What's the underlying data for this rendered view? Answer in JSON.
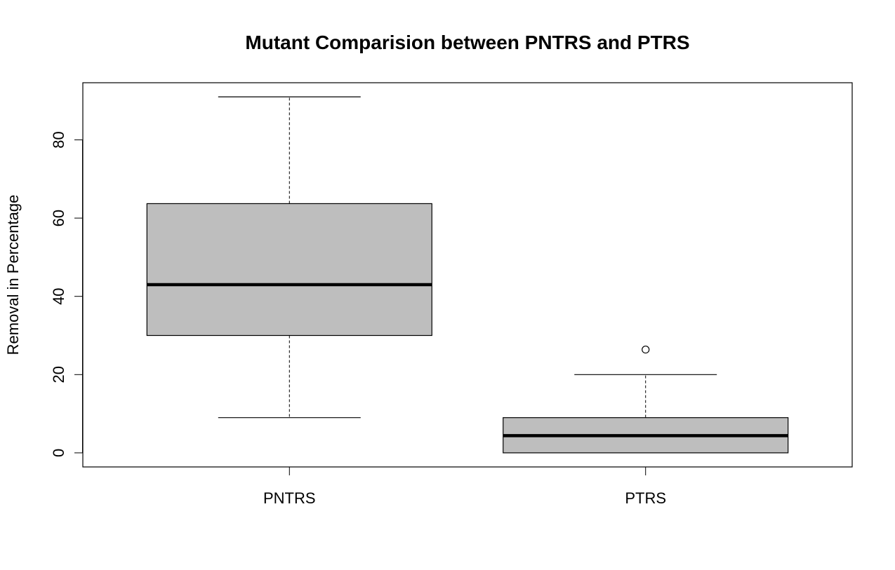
{
  "chart_data": {
    "type": "box",
    "title": "Mutant Comparision between PNTRS and PTRS",
    "xlabel": "",
    "ylabel": "Removal in Percentage",
    "ylim": [
      -3.6,
      94.6
    ],
    "yticks": [
      0,
      20,
      40,
      60,
      80
    ],
    "grid": false,
    "categories": [
      "PNTRS",
      "PTRS"
    ],
    "boxes": [
      {
        "label": "PNTRS",
        "whisker_low": 9,
        "q1": 30,
        "median": 43,
        "q3": 63.7,
        "whisker_high": 91,
        "outliers": []
      },
      {
        "label": "PTRS",
        "whisker_low": 0,
        "q1": 0,
        "median": 4.4,
        "q3": 9,
        "whisker_high": 20,
        "outliers": [
          26.4
        ]
      }
    ],
    "colors": {
      "box_fill": "#bebebe",
      "stroke": "#000000"
    }
  }
}
